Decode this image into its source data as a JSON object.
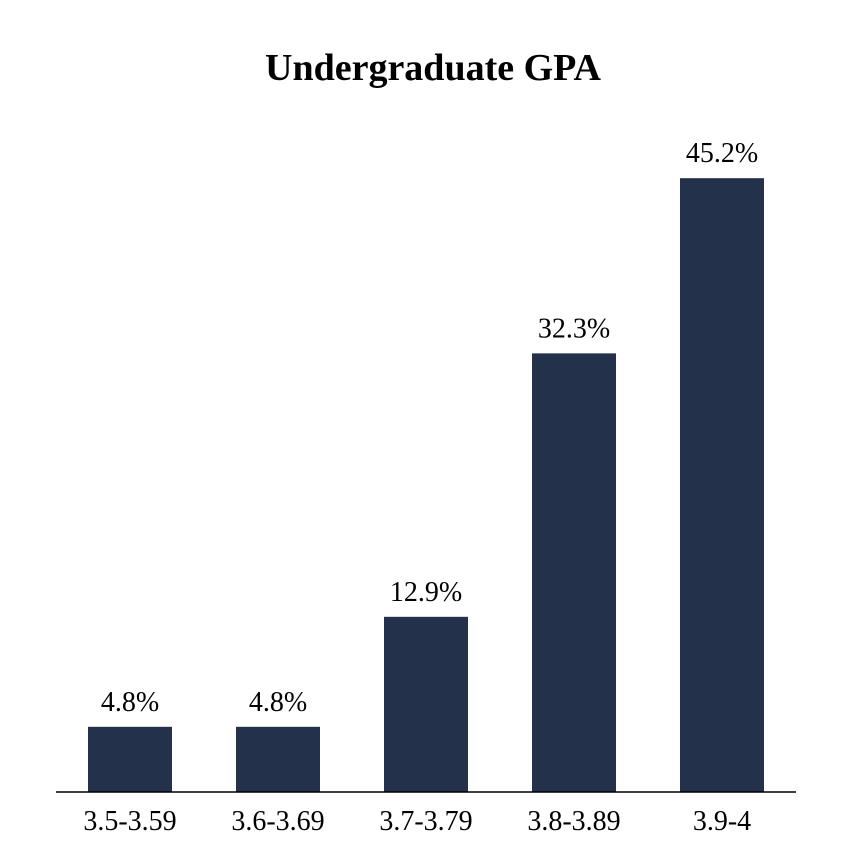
{
  "chart_data": {
    "type": "bar",
    "title": "Undergraduate GPA",
    "categories": [
      "3.5-3.59",
      "3.6-3.69",
      "3.7-3.79",
      "3.8-3.89",
      "3.9-4"
    ],
    "values": [
      4.8,
      4.8,
      12.9,
      32.3,
      45.2
    ],
    "value_labels": [
      "4.8%",
      "4.8%",
      "12.9%",
      "32.3%",
      "45.2%"
    ],
    "xlabel": "",
    "ylabel": "",
    "ylim": [
      0,
      50
    ],
    "grid": false,
    "legend": "none",
    "bar_color": "#24314b"
  }
}
